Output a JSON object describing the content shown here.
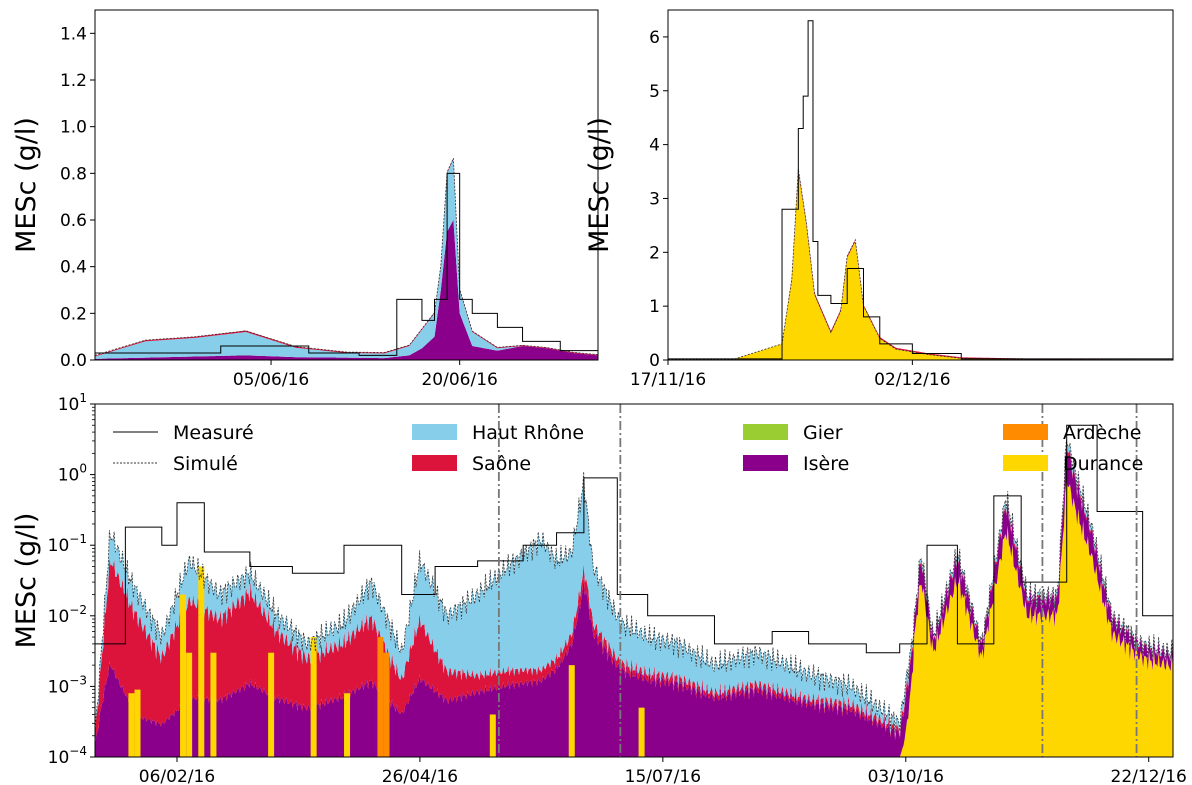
{
  "figure": {
    "colors": {
      "haut_rhone": "#87ceeb",
      "saone": "#dc143c",
      "gier": "#9acd32",
      "isere": "#8b008b",
      "ardeche": "#ff8c00",
      "durance": "#ffd700",
      "measured": "#000000",
      "simulated": "#333333",
      "vline": "#777777"
    }
  },
  "legend": {
    "entries": [
      {
        "key": "measured",
        "label": "Measuré",
        "kind": "line"
      },
      {
        "key": "simulated",
        "label": "Simulé",
        "kind": "dashed"
      },
      {
        "key": "haut_rhone",
        "label": "Haut Rhône",
        "kind": "patch"
      },
      {
        "key": "saone",
        "label": "Saône",
        "kind": "patch"
      },
      {
        "key": "gier",
        "label": "Gier",
        "kind": "patch"
      },
      {
        "key": "isere",
        "label": "Isère",
        "kind": "patch"
      },
      {
        "key": "ardeche",
        "label": "Ardèche",
        "kind": "patch"
      },
      {
        "key": "durance",
        "label": "Durance",
        "kind": "patch"
      }
    ]
  },
  "chart_data": [
    {
      "id": "top-left",
      "type": "area",
      "stacked": true,
      "ylabel": "MESc (g/l)",
      "ylim": [
        0,
        1.5
      ],
      "yticks": [
        0.0,
        0.2,
        0.4,
        0.6,
        0.8,
        1.0,
        1.2,
        1.4
      ],
      "ytick_labels": [
        "0.0",
        "0.2",
        "0.4",
        "0.6",
        "0.8",
        "1.0",
        "1.2",
        "1.4"
      ],
      "xlim": [
        "2016-05-22",
        "2016-07-01"
      ],
      "xticks": [
        "2016-06-05",
        "2016-06-20"
      ],
      "xtick_labels": [
        "05/06/16",
        "20/06/16"
      ],
      "series": [
        {
          "key": "isere",
          "x": [
            "2016-05-22",
            "2016-05-26",
            "2016-05-30",
            "2016-06-03",
            "2016-06-07",
            "2016-06-11",
            "2016-06-14",
            "2016-06-16",
            "2016-06-17",
            "2016-06-18",
            "2016-06-18.5",
            "2016-06-19",
            "2016-06-19.5",
            "2016-06-20",
            "2016-06-21",
            "2016-06-23",
            "2016-06-25",
            "2016-06-27",
            "2016-06-29",
            "2016-07-01"
          ],
          "values": [
            0.005,
            0.01,
            0.015,
            0.02,
            0.012,
            0.01,
            0.008,
            0.02,
            0.05,
            0.1,
            0.3,
            0.55,
            0.6,
            0.2,
            0.06,
            0.04,
            0.06,
            0.05,
            0.03,
            0.02
          ]
        },
        {
          "key": "haut_rhone",
          "x": [
            "2016-05-22",
            "2016-05-26",
            "2016-05-30",
            "2016-06-03",
            "2016-06-07",
            "2016-06-11",
            "2016-06-14",
            "2016-06-16",
            "2016-06-17",
            "2016-06-18",
            "2016-06-18.5",
            "2016-06-19",
            "2016-06-19.5",
            "2016-06-20",
            "2016-06-21",
            "2016-06-23",
            "2016-06-25",
            "2016-06-27",
            "2016-06-29",
            "2016-07-01"
          ],
          "values": [
            0.01,
            0.07,
            0.08,
            0.1,
            0.04,
            0.02,
            0.02,
            0.04,
            0.08,
            0.1,
            0.1,
            0.25,
            0.26,
            0.1,
            0.06,
            0.01,
            0.0,
            0.0,
            0.0,
            0.0
          ]
        },
        {
          "key": "saone",
          "x": [
            "2016-05-22",
            "2016-05-26",
            "2016-05-30",
            "2016-06-03",
            "2016-06-07",
            "2016-06-11",
            "2016-06-14",
            "2016-06-16",
            "2016-06-17",
            "2016-06-18",
            "2016-06-18.5",
            "2016-06-19",
            "2016-06-19.5",
            "2016-06-20",
            "2016-06-21",
            "2016-06-23",
            "2016-06-25",
            "2016-06-27",
            "2016-06-29",
            "2016-07-01"
          ],
          "values": [
            0.003,
            0.005,
            0.005,
            0.006,
            0.005,
            0.004,
            0.004,
            0.004,
            0.004,
            0.004,
            0.004,
            0.005,
            0.005,
            0.004,
            0.004,
            0.004,
            0.003,
            0.003,
            0.003,
            0.003
          ]
        }
      ],
      "simulated": {
        "x": [
          "2016-05-22",
          "2016-05-26",
          "2016-05-30",
          "2016-06-03",
          "2016-06-07",
          "2016-06-11",
          "2016-06-14",
          "2016-06-16",
          "2016-06-17",
          "2016-06-18",
          "2016-06-18.5",
          "2016-06-19",
          "2016-06-19.5",
          "2016-06-20",
          "2016-06-21",
          "2016-06-23",
          "2016-06-25",
          "2016-06-27",
          "2016-06-29",
          "2016-07-01"
        ],
        "values": [
          0.02,
          0.085,
          0.1,
          0.125,
          0.057,
          0.034,
          0.032,
          0.064,
          0.134,
          0.204,
          0.404,
          0.805,
          0.865,
          0.304,
          0.124,
          0.054,
          0.063,
          0.053,
          0.033,
          0.023
        ]
      },
      "measured": {
        "x": [
          "2016-05-22",
          "2016-06-01",
          "2016-06-01",
          "2016-06-08",
          "2016-06-08",
          "2016-06-12",
          "2016-06-12",
          "2016-06-15",
          "2016-06-15",
          "2016-06-17",
          "2016-06-17",
          "2016-06-18",
          "2016-06-18",
          "2016-06-19",
          "2016-06-19",
          "2016-06-20",
          "2016-06-20",
          "2016-06-21",
          "2016-06-21",
          "2016-06-23",
          "2016-06-23",
          "2016-06-25",
          "2016-06-25",
          "2016-06-28",
          "2016-06-28",
          "2016-07-01"
        ],
        "values": [
          0.03,
          0.03,
          0.06,
          0.06,
          0.03,
          0.03,
          0.02,
          0.02,
          0.26,
          0.26,
          0.17,
          0.17,
          0.26,
          0.26,
          0.8,
          0.8,
          0.26,
          0.26,
          0.2,
          0.2,
          0.14,
          0.14,
          0.08,
          0.08,
          0.04,
          0.04
        ]
      }
    },
    {
      "id": "top-right",
      "type": "area",
      "stacked": true,
      "ylabel": "MESc (g/l)",
      "ylim": [
        0,
        6.5
      ],
      "yticks": [
        0,
        1,
        2,
        3,
        4,
        5,
        6
      ],
      "ytick_labels": [
        "0",
        "1",
        "2",
        "3",
        "4",
        "5",
        "6"
      ],
      "xlim": [
        "2016-11-17",
        "2016-12-18"
      ],
      "xticks": [
        "2016-11-17",
        "2016-12-02"
      ],
      "xtick_labels": [
        "17/11/16",
        "02/12/16"
      ],
      "series": [
        {
          "key": "durance",
          "x": [
            "2016-11-17",
            "2016-11-21",
            "2016-11-24",
            "2016-11-24.6",
            "2016-11-25",
            "2016-11-25.5",
            "2016-11-26",
            "2016-11-27",
            "2016-11-27.6",
            "2016-11-28",
            "2016-11-28.5",
            "2016-11-29",
            "2016-11-30",
            "2016-12-01",
            "2016-12-03",
            "2016-12-05",
            "2016-12-10",
            "2016-12-18"
          ],
          "values": [
            0.01,
            0.01,
            0.3,
            1.5,
            3.5,
            2.5,
            1.2,
            0.5,
            0.9,
            1.9,
            2.2,
            1.0,
            0.4,
            0.2,
            0.1,
            0.03,
            0.01,
            0.0
          ]
        },
        {
          "key": "saone",
          "x": [
            "2016-11-17",
            "2016-11-24",
            "2016-11-25",
            "2016-11-28.5",
            "2016-12-18"
          ],
          "values": [
            0.0,
            0.0,
            0.05,
            0.03,
            0.0
          ]
        }
      ],
      "simulated": {
        "x": [
          "2016-11-17",
          "2016-11-21",
          "2016-11-24",
          "2016-11-24.6",
          "2016-11-25",
          "2016-11-25.5",
          "2016-11-26",
          "2016-11-27",
          "2016-11-27.6",
          "2016-11-28",
          "2016-11-28.5",
          "2016-11-29",
          "2016-11-30",
          "2016-12-01",
          "2016-12-03",
          "2016-12-05",
          "2016-12-10",
          "2016-12-18"
        ],
        "values": [
          0.01,
          0.01,
          0.3,
          1.5,
          3.55,
          2.53,
          1.22,
          0.51,
          0.91,
          1.93,
          2.23,
          1.01,
          0.4,
          0.2,
          0.1,
          0.03,
          0.01,
          0.0
        ]
      },
      "measured": {
        "x": [
          "2016-11-17",
          "2016-11-24",
          "2016-11-24",
          "2016-11-25",
          "2016-11-25",
          "2016-11-25.3",
          "2016-11-25.3",
          "2016-11-25.6",
          "2016-11-25.6",
          "2016-11-25.9",
          "2016-11-25.9",
          "2016-11-26.2",
          "2016-11-26.2",
          "2016-11-27",
          "2016-11-27",
          "2016-11-28",
          "2016-11-28",
          "2016-11-29",
          "2016-11-29",
          "2016-11-30",
          "2016-11-30",
          "2016-12-02",
          "2016-12-02",
          "2016-12-05",
          "2016-12-05",
          "2016-12-18"
        ],
        "values": [
          0.02,
          0.02,
          2.8,
          2.8,
          4.3,
          4.3,
          4.9,
          4.9,
          6.3,
          6.3,
          2.2,
          2.2,
          1.2,
          1.2,
          1.05,
          1.05,
          1.7,
          1.7,
          0.8,
          0.8,
          0.3,
          0.3,
          0.12,
          0.12,
          0.02,
          0.02
        ]
      }
    },
    {
      "id": "bottom",
      "type": "area",
      "stacked": true,
      "yscale": "log",
      "ylabel": "MESc (g/l)",
      "ylim": [
        0.0001,
        10
      ],
      "yticks": [
        0.0001,
        0.001,
        0.01,
        0.1,
        1,
        10
      ],
      "ytick_labels": [
        {
          "base": "10",
          "exp": "−4"
        },
        {
          "base": "10",
          "exp": "−3"
        },
        {
          "base": "10",
          "exp": "−2"
        },
        {
          "base": "10",
          "exp": "−1"
        },
        {
          "base": "10",
          "exp": "0"
        },
        {
          "base": "10",
          "exp": "1"
        }
      ],
      "xlim": [
        "2016-01-10",
        "2016-12-30"
      ],
      "xticks": [
        "2016-02-06",
        "2016-04-26",
        "2016-07-15",
        "2016-10-03",
        "2016-12-22"
      ],
      "xtick_labels": [
        "06/02/16",
        "26/04/16",
        "15/07/16",
        "03/10/16",
        "22/12/16"
      ],
      "vlines": [
        "2016-05-22",
        "2016-07-01",
        "2016-11-17",
        "2016-12-18"
      ],
      "legend_position": "top",
      "total_simulated": {
        "x": [
          "2016-01-10",
          "2016-01-15",
          "2016-01-22",
          "2016-02-01",
          "2016-02-10",
          "2016-02-20",
          "2016-03-01",
          "2016-03-10",
          "2016-03-20",
          "2016-04-01",
          "2016-04-10",
          "2016-04-20",
          "2016-04-26",
          "2016-05-05",
          "2016-05-15",
          "2016-05-25",
          "2016-06-05",
          "2016-06-10",
          "2016-06-15",
          "2016-06-19",
          "2016-06-22",
          "2016-07-01",
          "2016-07-10",
          "2016-07-20",
          "2016-08-01",
          "2016-08-15",
          "2016-09-01",
          "2016-09-15",
          "2016-10-01",
          "2016-10-05",
          "2016-10-08",
          "2016-10-12",
          "2016-10-20",
          "2016-10-28",
          "2016-11-05",
          "2016-11-12",
          "2016-11-17",
          "2016-11-22",
          "2016-11-25",
          "2016-11-28",
          "2016-12-03",
          "2016-12-10",
          "2016-12-20",
          "2016-12-30"
        ],
        "values": [
          0.0002,
          0.15,
          0.03,
          0.005,
          0.06,
          0.02,
          0.04,
          0.01,
          0.004,
          0.008,
          0.03,
          0.003,
          0.06,
          0.01,
          0.02,
          0.05,
          0.12,
          0.06,
          0.08,
          0.8,
          0.05,
          0.008,
          0.005,
          0.004,
          0.002,
          0.003,
          0.0015,
          0.001,
          0.0003,
          0.004,
          0.08,
          0.005,
          0.08,
          0.004,
          0.5,
          0.02,
          0.02,
          0.02,
          3.5,
          1.0,
          0.2,
          0.01,
          0.004,
          0.003
        ]
      },
      "measured_total": {
        "x": [
          "2016-01-10",
          "2016-01-20",
          "2016-02-01",
          "2016-02-06",
          "2016-02-15",
          "2016-03-01",
          "2016-03-15",
          "2016-04-01",
          "2016-04-20",
          "2016-05-01",
          "2016-05-15",
          "2016-05-30",
          "2016-06-10",
          "2016-06-19",
          "2016-06-30",
          "2016-07-10",
          "2016-07-20",
          "2016-08-01",
          "2016-08-20",
          "2016-09-01",
          "2016-09-20",
          "2016-10-01",
          "2016-10-10",
          "2016-10-20",
          "2016-11-01",
          "2016-11-10",
          "2016-11-25",
          "2016-12-05",
          "2016-12-20",
          "2016-12-30"
        ],
        "values": [
          0.004,
          0.18,
          0.1,
          0.4,
          0.08,
          0.05,
          0.04,
          0.1,
          0.02,
          0.05,
          0.06,
          0.1,
          0.15,
          0.9,
          0.02,
          0.01,
          0.01,
          0.004,
          0.006,
          0.004,
          0.003,
          0.004,
          0.1,
          0.004,
          0.5,
          0.03,
          5.0,
          0.3,
          0.01,
          0.008
        ]
      },
      "shares": {
        "x": [
          "2016-01-10",
          "2016-01-25",
          "2016-02-10",
          "2016-03-01",
          "2016-04-01",
          "2016-04-26",
          "2016-05-15",
          "2016-06-05",
          "2016-06-20",
          "2016-07-10",
          "2016-08-01",
          "2016-09-01",
          "2016-10-01",
          "2016-10-06",
          "2016-10-20",
          "2016-11-05",
          "2016-11-20",
          "2016-12-30"
        ],
        "haut_rhone": [
          0.1,
          0.15,
          0.2,
          0.1,
          0.15,
          0.3,
          0.5,
          0.6,
          0.3,
          0.3,
          0.3,
          0.3,
          0.2,
          0.02,
          0.02,
          0.02,
          0.02,
          0.02
        ],
        "saone": [
          0.4,
          0.6,
          0.5,
          0.5,
          0.4,
          0.3,
          0.1,
          0.05,
          0.05,
          0.05,
          0.05,
          0.05,
          0.1,
          0.01,
          0.01,
          0.01,
          0.01,
          0.01
        ],
        "isere": [
          0.5,
          0.25,
          0.3,
          0.4,
          0.45,
          0.4,
          0.4,
          0.35,
          0.65,
          0.65,
          0.65,
          0.65,
          0.7,
          0.1,
          0.1,
          0.1,
          0.1,
          0.1
        ],
        "durance": [
          0.0,
          0.0,
          0.0,
          0.0,
          0.0,
          0.0,
          0.0,
          0.0,
          0.0,
          0.0,
          0.0,
          0.0,
          0.0,
          0.87,
          0.87,
          0.87,
          0.87,
          0.87
        ]
      },
      "spikes": [
        {
          "key": "durance",
          "x": [
            "2016-01-22",
            "2016-01-24",
            "2016-02-08",
            "2016-02-10",
            "2016-02-14",
            "2016-02-18",
            "2016-03-08",
            "2016-03-22",
            "2016-04-02",
            "2016-05-20",
            "2016-06-15",
            "2016-07-08"
          ],
          "top": [
            0.0008,
            0.0009,
            0.02,
            0.003,
            0.05,
            0.003,
            0.003,
            0.005,
            0.0008,
            0.0004,
            0.002,
            0.0005
          ]
        },
        {
          "key": "ardeche",
          "x": [
            "2016-04-13",
            "2016-04-15"
          ],
          "top": [
            0.005,
            0.003
          ]
        }
      ]
    }
  ]
}
